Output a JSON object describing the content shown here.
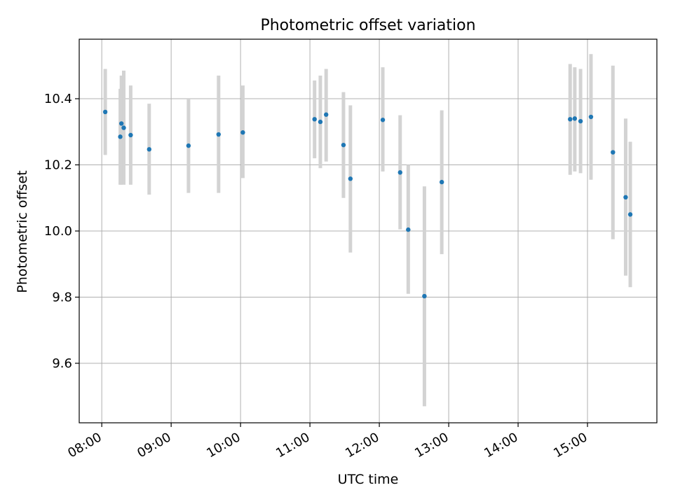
{
  "chart_data": {
    "type": "scatter",
    "title": "Photometric offset variation",
    "xlabel": "UTC time",
    "ylabel": "Photometric offset",
    "x_tick_labels": [
      "08:00",
      "09:00",
      "10:00",
      "11:00",
      "12:00",
      "13:00",
      "14:00",
      "15:00"
    ],
    "x_ticks_hours": [
      8,
      9,
      10,
      11,
      12,
      13,
      14,
      15
    ],
    "y_ticks": [
      9.6,
      9.8,
      10.0,
      10.2,
      10.4
    ],
    "y_tick_labels": [
      "9.6",
      "9.8",
      "10.0",
      "10.2",
      "10.4"
    ],
    "xlim_hours": [
      7.675,
      16.0
    ],
    "ylim": [
      9.42,
      10.58
    ],
    "grid": true,
    "colors": {
      "point": "#1f77b4",
      "errorbar": "#d3d3d3",
      "grid": "#b0b0b0"
    },
    "points": [
      {
        "t": "08:03",
        "y": 10.36,
        "lo": 10.23,
        "hi": 10.49
      },
      {
        "t": "08:16",
        "y": 10.285,
        "lo": 10.14,
        "hi": 10.43
      },
      {
        "t": "08:17",
        "y": 10.325,
        "lo": 10.14,
        "hi": 10.47
      },
      {
        "t": "08:19",
        "y": 10.312,
        "lo": 10.14,
        "hi": 10.485
      },
      {
        "t": "08:25",
        "y": 10.29,
        "lo": 10.14,
        "hi": 10.44
      },
      {
        "t": "08:41",
        "y": 10.247,
        "lo": 10.11,
        "hi": 10.385
      },
      {
        "t": "09:15",
        "y": 10.258,
        "lo": 10.115,
        "hi": 10.4
      },
      {
        "t": "09:41",
        "y": 10.292,
        "lo": 10.115,
        "hi": 10.47
      },
      {
        "t": "10:02",
        "y": 10.298,
        "lo": 10.16,
        "hi": 10.44
      },
      {
        "t": "11:04",
        "y": 10.338,
        "lo": 10.22,
        "hi": 10.455
      },
      {
        "t": "11:09",
        "y": 10.33,
        "lo": 10.19,
        "hi": 10.47
      },
      {
        "t": "11:14",
        "y": 10.352,
        "lo": 10.21,
        "hi": 10.49
      },
      {
        "t": "11:29",
        "y": 10.26,
        "lo": 10.1,
        "hi": 10.42
      },
      {
        "t": "11:35",
        "y": 10.158,
        "lo": 9.935,
        "hi": 10.38
      },
      {
        "t": "12:03",
        "y": 10.336,
        "lo": 10.18,
        "hi": 10.495
      },
      {
        "t": "12:18",
        "y": 10.177,
        "lo": 10.005,
        "hi": 10.35
      },
      {
        "t": "12:25",
        "y": 10.004,
        "lo": 9.81,
        "hi": 10.2
      },
      {
        "t": "12:39",
        "y": 9.803,
        "lo": 9.47,
        "hi": 10.135
      },
      {
        "t": "12:54",
        "y": 10.148,
        "lo": 9.93,
        "hi": 10.365
      },
      {
        "t": "14:45",
        "y": 10.338,
        "lo": 10.17,
        "hi": 10.505
      },
      {
        "t": "14:49",
        "y": 10.34,
        "lo": 10.18,
        "hi": 10.495
      },
      {
        "t": "14:54",
        "y": 10.332,
        "lo": 10.175,
        "hi": 10.49
      },
      {
        "t": "15:03",
        "y": 10.345,
        "lo": 10.155,
        "hi": 10.535
      },
      {
        "t": "15:22",
        "y": 10.238,
        "lo": 9.975,
        "hi": 10.5
      },
      {
        "t": "15:33",
        "y": 10.102,
        "lo": 9.865,
        "hi": 10.34
      },
      {
        "t": "15:37",
        "y": 10.05,
        "lo": 9.83,
        "hi": 10.27
      }
    ]
  }
}
